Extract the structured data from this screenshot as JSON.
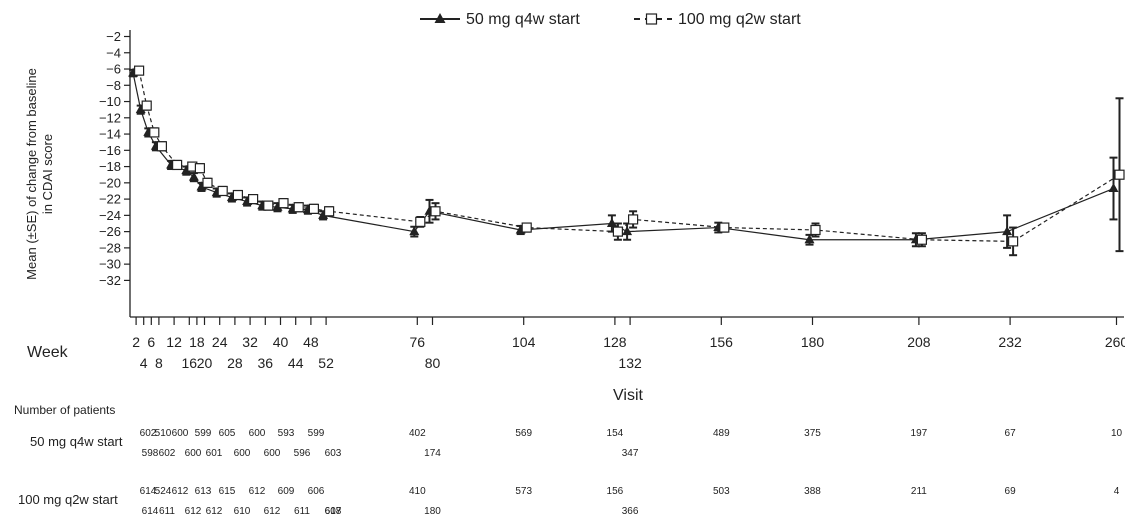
{
  "chart_data": {
    "type": "line",
    "ylabel_line1": "Mean (±SE) of change from baseline",
    "ylabel_line2": "in CDAI score",
    "xlabel_week": "Week",
    "xlabel_visit": "Visit",
    "ylim": [
      -33,
      -2
    ],
    "y_ticks": [
      -2,
      -4,
      -6,
      -8,
      -10,
      -12,
      -14,
      -16,
      -18,
      -20,
      -22,
      -24,
      -26,
      -28,
      -30,
      -32
    ],
    "x_ticks_top": [
      2,
      6,
      12,
      18,
      24,
      32,
      40,
      48,
      76,
      104,
      128,
      156,
      180,
      208,
      232,
      260
    ],
    "x_ticks_bottom": [
      4,
      8,
      16,
      20,
      28,
      36,
      44,
      52,
      80,
      132
    ],
    "legend": {
      "placement": "top-center"
    },
    "series": [
      {
        "name": "50 mg q4w start",
        "color": "#222222",
        "marker": "filled-triangle",
        "line": "solid",
        "points": [
          {
            "x": 2,
            "y": -6.5,
            "se": 0.4
          },
          {
            "x": 4,
            "y": -11,
            "se": 0.5
          },
          {
            "x": 6,
            "y": -13.8,
            "se": 0.5
          },
          {
            "x": 8,
            "y": -15.5,
            "se": 0.5
          },
          {
            "x": 12,
            "y": -17.8,
            "se": 0.5
          },
          {
            "x": 16,
            "y": -18.5,
            "se": 0.5
          },
          {
            "x": 18,
            "y": -19.3,
            "se": 0.5
          },
          {
            "x": 20,
            "y": -20.5,
            "se": 0.5
          },
          {
            "x": 24,
            "y": -21.2,
            "se": 0.5
          },
          {
            "x": 28,
            "y": -21.8,
            "se": 0.5
          },
          {
            "x": 32,
            "y": -22.3,
            "se": 0.5
          },
          {
            "x": 36,
            "y": -22.8,
            "se": 0.5
          },
          {
            "x": 40,
            "y": -23,
            "se": 0.5
          },
          {
            "x": 44,
            "y": -23.2,
            "se": 0.5
          },
          {
            "x": 48,
            "y": -23.3,
            "se": 0.5
          },
          {
            "x": 52,
            "y": -24,
            "se": 0.5
          },
          {
            "x": 76,
            "y": -26,
            "se": 0.6
          },
          {
            "x": 80,
            "y": -23.5,
            "se": 1.4
          },
          {
            "x": 104,
            "y": -25.8,
            "se": 0.5
          },
          {
            "x": 128,
            "y": -25,
            "se": 1.0
          },
          {
            "x": 132,
            "y": -26,
            "se": 1.0
          },
          {
            "x": 156,
            "y": -25.5,
            "se": 0.6
          },
          {
            "x": 180,
            "y": -27,
            "se": 0.6
          },
          {
            "x": 208,
            "y": -27,
            "se": 0.8
          },
          {
            "x": 232,
            "y": -26,
            "se": 2.0
          },
          {
            "x": 260,
            "y": -20.7,
            "se": 3.8
          }
        ]
      },
      {
        "name": "100 mg q2w start",
        "color": "#222222",
        "marker": "open-square",
        "line": "dashed",
        "points": [
          {
            "x": 2,
            "y": -6.2,
            "se": 0.4
          },
          {
            "x": 4,
            "y": -10.5,
            "se": 0.5
          },
          {
            "x": 6,
            "y": -13.8,
            "se": 0.5
          },
          {
            "x": 8,
            "y": -15.5,
            "se": 0.5
          },
          {
            "x": 12,
            "y": -17.8,
            "se": 0.5
          },
          {
            "x": 16,
            "y": -18,
            "se": 0.5
          },
          {
            "x": 18,
            "y": -18.2,
            "se": 0.5
          },
          {
            "x": 20,
            "y": -20,
            "se": 0.5
          },
          {
            "x": 24,
            "y": -21,
            "se": 0.5
          },
          {
            "x": 28,
            "y": -21.5,
            "se": 0.5
          },
          {
            "x": 32,
            "y": -22,
            "se": 0.5
          },
          {
            "x": 36,
            "y": -22.8,
            "se": 0.5
          },
          {
            "x": 40,
            "y": -22.5,
            "se": 0.5
          },
          {
            "x": 44,
            "y": -23,
            "se": 0.5
          },
          {
            "x": 48,
            "y": -23.2,
            "se": 0.5
          },
          {
            "x": 52,
            "y": -23.5,
            "se": 0.5
          },
          {
            "x": 76,
            "y": -24.8,
            "se": 0.6
          },
          {
            "x": 80,
            "y": -23.5,
            "se": 1.0
          },
          {
            "x": 104,
            "y": -25.5,
            "se": 0.5
          },
          {
            "x": 128,
            "y": -26,
            "se": 1.0
          },
          {
            "x": 132,
            "y": -24.5,
            "se": 1.0
          },
          {
            "x": 156,
            "y": -25.5,
            "se": 0.5
          },
          {
            "x": 180,
            "y": -25.8,
            "se": 0.8
          },
          {
            "x": 208,
            "y": -27,
            "se": 0.8
          },
          {
            "x": 232,
            "y": -27.2,
            "se": 1.7
          },
          {
            "x": 260,
            "y": -19,
            "se": 9.4
          }
        ]
      }
    ],
    "patients": {
      "heading": "Number of patients",
      "rows": [
        {
          "label": "50 mg q4w start",
          "counts": [
            {
              "week": 2,
              "n": "602"
            },
            {
              "week": 4,
              "n": "510"
            },
            {
              "week": 6,
              "n": "600"
            },
            {
              "week": 8,
              "n": "599"
            },
            {
              "week": 12,
              "n": "605"
            },
            {
              "week": 16,
              "n": "600"
            },
            {
              "week": 18,
              "n": "593"
            },
            {
              "week": 20,
              "n": "599"
            },
            {
              "week": 76,
              "n": "402"
            },
            {
              "week": 104,
              "n": "569"
            },
            {
              "week": 128,
              "n": "154"
            },
            {
              "week": 156,
              "n": "489"
            },
            {
              "week": 180,
              "n": "375"
            },
            {
              "week": 208,
              "n": "197"
            },
            {
              "week": 232,
              "n": "67"
            },
            {
              "week": 260,
              "n": "10"
            }
          ],
          "counts_second_line": [
            {
              "week": 2,
              "n": "598"
            },
            {
              "week": 4,
              "n": "602"
            },
            {
              "week": 6,
              "n": "600"
            },
            {
              "week": 8,
              "n": "601"
            },
            {
              "week": 12,
              "n": "600"
            },
            {
              "week": 16,
              "n": "600"
            },
            {
              "week": 18,
              "n": "596"
            },
            {
              "week": 20,
              "n": "603"
            },
            {
              "week": 80,
              "n": "174"
            },
            {
              "week": 132,
              "n": "347"
            }
          ]
        },
        {
          "label": "100 mg q2w start",
          "counts": [
            {
              "week": 2,
              "n": "614"
            },
            {
              "week": 4,
              "n": "524"
            },
            {
              "week": 6,
              "n": "612"
            },
            {
              "week": 8,
              "n": "613"
            },
            {
              "week": 12,
              "n": "615"
            },
            {
              "week": 16,
              "n": "612"
            },
            {
              "week": 18,
              "n": "609"
            },
            {
              "week": 20,
              "n": "606"
            },
            {
              "week": 76,
              "n": "410"
            },
            {
              "week": 104,
              "n": "573"
            },
            {
              "week": 128,
              "n": "156"
            },
            {
              "week": 156,
              "n": "503"
            },
            {
              "week": 180,
              "n": "388"
            },
            {
              "week": 208,
              "n": "211"
            },
            {
              "week": 232,
              "n": "69"
            },
            {
              "week": 260,
              "n": "4"
            }
          ],
          "counts_second_line": [
            {
              "week": 2,
              "n": "614"
            },
            {
              "week": 4,
              "n": "611"
            },
            {
              "week": 6,
              "n": "612"
            },
            {
              "week": 8,
              "n": "612"
            },
            {
              "week": 12,
              "n": "610"
            },
            {
              "week": 16,
              "n": "612"
            },
            {
              "week": 18,
              "n": "611"
            },
            {
              "week": 20,
              "n": "608"
            },
            {
              "week": 52,
              "n": "617"
            },
            {
              "week": 80,
              "n": "180"
            },
            {
              "week": 132,
              "n": "366"
            }
          ]
        }
      ]
    }
  }
}
